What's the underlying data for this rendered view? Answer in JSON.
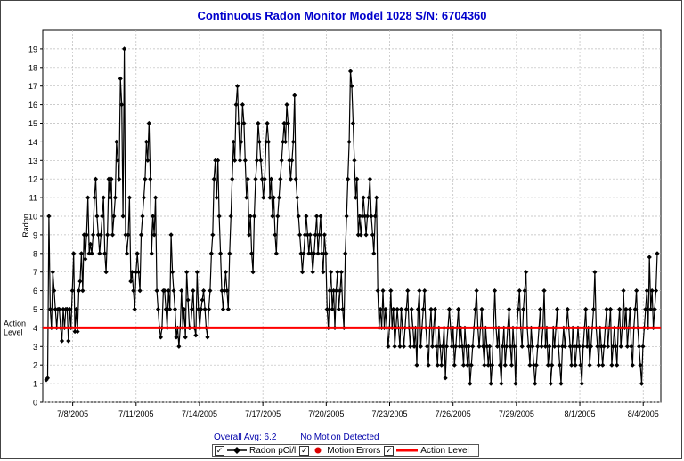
{
  "chart_data": {
    "type": "line",
    "title": "Continuous Radon Monitor Model 1028  S/N: 6704360",
    "ylabel": "Radon",
    "xlabel": "",
    "ylim": [
      0,
      20
    ],
    "yticks": [
      0,
      1,
      2,
      3,
      4,
      5,
      6,
      7,
      8,
      9,
      10,
      11,
      12,
      13,
      14,
      15,
      16,
      17,
      18,
      19
    ],
    "xticks": [
      "7/8/2005",
      "7/11/2005",
      "7/14/2005",
      "7/17/2005",
      "7/20/2005",
      "7/23/2005",
      "7/26/2005",
      "7/29/2005",
      "8/1/2005",
      "8/4/2005"
    ],
    "x_range": [
      "7/6/2005 14:00",
      "8/4/2005 20:00"
    ],
    "grid": true,
    "action_level": {
      "value": 4,
      "label_line1": "Action",
      "label_line2": "Level",
      "color": "#ff0000"
    },
    "series": [
      {
        "name": "Radon pCi/l",
        "color": "#000000",
        "marker": "diamond",
        "values": [
          1.2,
          1.3,
          10,
          5,
          4,
          7,
          6,
          5,
          4,
          5,
          5,
          4,
          3.3,
          5,
          4,
          5,
          5,
          3.3,
          5,
          4,
          6,
          8,
          3.8,
          5,
          3.8,
          6,
          6.5,
          8,
          6,
          9,
          7.7,
          9,
          11,
          8,
          8.5,
          8,
          9,
          11,
          12,
          10,
          9,
          8,
          9,
          10,
          11,
          8,
          7,
          9,
          12,
          11,
          12,
          9,
          10,
          11,
          14,
          13,
          12,
          17.4,
          16,
          10,
          19,
          9,
          8,
          9,
          11,
          6.5,
          7,
          6,
          5,
          7,
          8,
          7,
          6,
          9,
          10,
          11,
          12,
          14,
          13,
          15,
          12,
          8,
          10,
          9,
          11,
          6,
          5,
          4,
          3.5,
          4,
          6,
          6,
          5,
          4,
          6,
          5,
          9,
          7,
          6,
          5,
          3.5,
          4,
          3,
          4,
          6,
          4,
          5,
          3.5,
          7,
          5.5,
          4,
          4,
          5,
          6,
          4,
          3.6,
          7,
          5,
          4,
          5,
          5.5,
          6,
          5,
          4,
          3.5,
          5,
          6,
          8,
          9,
          12,
          13,
          11,
          13,
          10,
          8,
          6,
          5,
          6,
          7,
          6,
          5,
          8,
          10,
          12,
          14,
          13,
          16,
          17,
          15,
          13,
          14,
          16,
          15,
          13,
          11,
          12,
          9,
          10,
          8,
          7,
          10,
          12,
          13,
          15,
          14,
          13,
          12,
          11,
          12,
          14,
          15,
          14,
          11,
          12,
          10,
          11,
          9,
          8,
          10,
          11,
          12,
          13,
          14,
          15,
          14,
          16,
          15,
          13,
          12,
          13,
          14,
          16.5,
          12,
          11,
          10,
          9,
          8,
          7,
          8,
          9,
          10,
          9,
          8,
          9,
          8,
          7,
          8,
          9,
          10,
          8,
          9,
          10,
          8,
          7,
          9,
          8,
          5,
          4,
          6,
          7,
          5,
          6,
          4,
          6,
          7,
          5,
          6,
          7,
          5,
          4,
          8,
          10,
          12,
          14,
          17.8,
          17,
          15,
          13,
          11,
          12,
          9,
          10,
          9,
          10,
          11,
          10,
          9,
          10,
          11,
          12,
          10,
          9,
          8,
          10,
          11,
          6,
          4,
          5,
          4,
          6,
          4,
          5,
          4,
          3,
          4,
          6,
          4,
          5,
          3,
          4,
          5,
          4,
          3,
          5,
          4,
          3,
          4,
          5,
          6,
          4,
          3,
          5,
          4,
          3,
          4,
          2,
          5,
          6,
          3,
          4,
          5,
          6,
          4,
          3,
          2,
          4,
          5,
          3,
          4,
          5,
          3,
          2,
          4,
          3,
          2,
          3,
          4,
          1.3,
          3,
          4,
          5,
          4,
          3,
          4,
          2,
          3,
          4,
          5,
          3,
          4,
          3,
          2,
          4,
          3,
          2,
          3,
          1,
          2,
          3,
          4,
          5,
          6,
          4,
          3,
          4,
          5,
          3,
          2,
          4,
          3,
          2,
          3,
          1,
          2,
          4,
          6,
          4,
          3,
          4,
          2,
          1,
          3,
          4,
          2,
          3,
          4,
          5,
          3,
          2,
          4,
          3,
          1,
          4,
          5,
          6,
          4,
          3,
          5,
          6,
          7,
          4,
          3,
          2,
          4,
          3,
          2,
          1,
          2,
          3,
          4,
          5,
          3,
          4,
          6,
          3,
          4,
          2,
          3,
          1,
          2,
          4,
          3,
          4,
          5,
          3,
          2,
          1,
          3,
          4,
          3,
          4,
          5,
          4,
          3,
          2,
          4,
          3,
          2,
          3,
          4,
          3,
          2,
          1,
          3,
          4,
          5,
          3,
          4,
          2,
          3,
          4,
          5,
          7,
          4,
          3,
          2,
          4,
          3,
          2,
          3,
          4,
          5,
          3,
          4,
          5,
          2,
          3,
          4,
          3,
          2,
          4,
          5,
          3,
          4,
          6,
          4,
          5,
          3,
          4,
          5,
          3,
          2,
          4,
          5,
          6,
          4,
          3,
          2,
          1,
          3,
          4,
          5,
          6,
          4,
          7.8,
          5,
          6,
          4,
          5,
          6,
          8
        ]
      }
    ],
    "annotations": {
      "overall_avg": "Overall Avg: 6.2",
      "motion": "No Motion Detected"
    },
    "legend": {
      "placement": "bottom",
      "items": [
        {
          "label": "Radon pCi/l",
          "color": "#000000",
          "symbol": "line-diamond"
        },
        {
          "label": "Motion Errors",
          "color": "#dd0000",
          "symbol": "dot"
        },
        {
          "label": "Action Level",
          "color": "#ff0000",
          "symbol": "line"
        }
      ]
    }
  }
}
